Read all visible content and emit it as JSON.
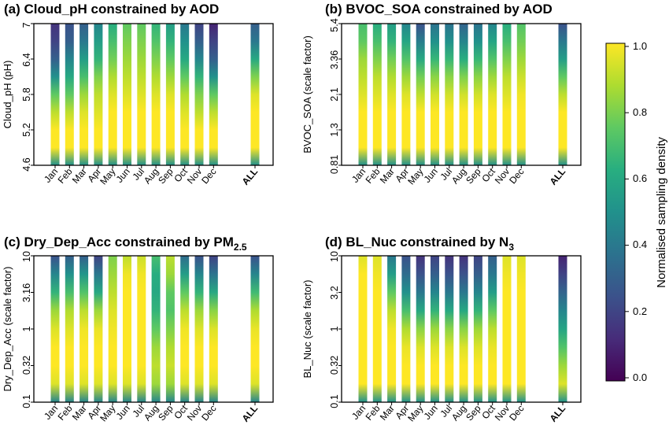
{
  "colorbar": {
    "label": "Normalised sampling density",
    "ticks": [
      "0.0",
      "0.2",
      "0.4",
      "0.6",
      "0.8",
      "1.0"
    ],
    "tick_values": [
      0,
      0.2,
      0.4,
      0.6,
      0.8,
      1.0
    ],
    "colormap": "viridis",
    "stops": [
      "#440154",
      "#472c7a",
      "#3b528b",
      "#2c728e",
      "#21918c",
      "#28ae80",
      "#5ec962",
      "#addc30",
      "#fde725"
    ]
  },
  "chart_data": [
    {
      "type": "heatmap",
      "title_text": "(a) Cloud_pH constrained by AOD",
      "ylabel": "Cloud_pH  (pH)",
      "yticks": [
        "4.6",
        "5.2",
        "5.8",
        "6.4",
        "7"
      ],
      "categories": [
        "Jan",
        "Feb",
        "Mar",
        "Apr",
        "May",
        "Jun",
        "Jul",
        "Aug",
        "Sep",
        "Oct",
        "Nov",
        "Dec",
        "ALL"
      ],
      "density_profiles": [
        [
          0.5,
          1,
          1,
          0.9,
          0.75,
          0.5,
          0.3,
          0.2,
          0.15
        ],
        [
          0.5,
          1,
          1,
          0.9,
          0.75,
          0.6,
          0.45,
          0.3,
          0.25
        ],
        [
          0.5,
          1,
          1,
          0.95,
          0.85,
          0.7,
          0.55,
          0.4,
          0.3
        ],
        [
          0.5,
          1,
          1,
          0.95,
          0.9,
          0.8,
          0.65,
          0.55,
          0.45
        ],
        [
          0.5,
          1,
          1,
          1,
          0.95,
          0.88,
          0.78,
          0.7,
          0.62
        ],
        [
          0.5,
          1,
          1,
          1,
          0.95,
          0.9,
          0.85,
          0.8,
          0.75
        ],
        [
          0.5,
          1,
          1,
          1,
          0.95,
          0.9,
          0.85,
          0.8,
          0.75
        ],
        [
          0.5,
          1,
          1,
          1,
          0.95,
          0.88,
          0.8,
          0.72,
          0.65
        ],
        [
          0.5,
          1,
          1,
          1,
          0.95,
          0.85,
          0.75,
          0.65,
          0.55
        ],
        [
          0.5,
          1,
          1,
          0.95,
          0.88,
          0.75,
          0.6,
          0.5,
          0.4
        ],
        [
          0.5,
          1,
          1,
          0.9,
          0.8,
          0.65,
          0.45,
          0.3,
          0.2
        ],
        [
          0.5,
          1,
          1,
          0.9,
          0.75,
          0.5,
          0.3,
          0.2,
          0.1
        ],
        [
          0.5,
          1,
          1,
          1,
          0.95,
          0.8,
          0.6,
          0.4,
          0.3
        ]
      ]
    },
    {
      "type": "heatmap",
      "title_text": "(b) BVOC_SOA constrained by AOD",
      "ylabel": "BVOC_SOA  (scale factor)",
      "yticks": [
        "0.81",
        "1.3",
        "2.1",
        "3.36",
        "5.4"
      ],
      "categories": [
        "Jan",
        "Feb",
        "Mar",
        "Apr",
        "May",
        "Jun",
        "Jul",
        "Aug",
        "Sep",
        "Oct",
        "Nov",
        "Dec",
        "ALL"
      ],
      "density_profiles": [
        [
          0.5,
          1,
          1,
          1,
          0.95,
          0.9,
          0.85,
          0.75,
          0.7
        ],
        [
          0.5,
          1,
          1,
          1,
          0.95,
          0.9,
          0.8,
          0.7,
          0.62
        ],
        [
          0.5,
          1,
          1,
          1,
          0.95,
          0.88,
          0.78,
          0.65,
          0.55
        ],
        [
          0.5,
          1,
          1,
          1,
          0.95,
          0.85,
          0.72,
          0.58,
          0.45
        ],
        [
          0.5,
          1,
          1,
          1,
          0.9,
          0.78,
          0.6,
          0.42,
          0.25
        ],
        [
          0.5,
          1,
          1,
          1,
          0.93,
          0.82,
          0.66,
          0.5,
          0.38
        ],
        [
          0.5,
          1,
          1,
          1,
          0.93,
          0.82,
          0.66,
          0.5,
          0.38
        ],
        [
          0.5,
          1,
          1,
          1,
          0.93,
          0.8,
          0.62,
          0.45,
          0.32
        ],
        [
          0.5,
          1,
          1,
          1,
          0.93,
          0.82,
          0.66,
          0.5,
          0.38
        ],
        [
          0.5,
          1,
          1,
          1,
          0.95,
          0.85,
          0.72,
          0.58,
          0.45
        ],
        [
          0.5,
          1,
          1,
          1,
          0.95,
          0.9,
          0.8,
          0.7,
          0.62
        ],
        [
          0.5,
          1,
          1,
          1,
          0.98,
          0.92,
          0.85,
          0.78,
          0.72
        ],
        [
          0.5,
          1,
          1,
          1,
          0.9,
          0.75,
          0.55,
          0.4,
          0.25
        ]
      ]
    },
    {
      "type": "heatmap",
      "title_text": "(c) Dry_Dep_Acc constrained by PM",
      "title_subscript": "2.5",
      "ylabel": "Dry_Dep_Acc  (scale factor)",
      "yticks": [
        "0.1",
        "0.32",
        "1",
        "3.16",
        "10"
      ],
      "categories": [
        "Jan",
        "Feb",
        "Mar",
        "Apr",
        "May",
        "Jun",
        "Jul",
        "Aug",
        "Sep",
        "Oct",
        "Nov",
        "Dec",
        "ALL"
      ],
      "density_profiles": [
        [
          0.45,
          0.95,
          1,
          1,
          0.95,
          0.85,
          0.65,
          0.45,
          0.25
        ],
        [
          0.45,
          0.95,
          1,
          1,
          0.95,
          0.88,
          0.7,
          0.5,
          0.3
        ],
        [
          0.45,
          0.95,
          1,
          1,
          0.98,
          0.9,
          0.72,
          0.52,
          0.3
        ],
        [
          0.45,
          0.95,
          1,
          1,
          0.97,
          0.85,
          0.6,
          0.4,
          0.2
        ],
        [
          0.45,
          0.95,
          1,
          1,
          0.98,
          0.95,
          0.9,
          0.85,
          0.8
        ],
        [
          0.45,
          0.95,
          1,
          1,
          1,
          1,
          1,
          0.98,
          0.9
        ],
        [
          0.45,
          0.95,
          1,
          1,
          1,
          1,
          1,
          0.98,
          0.92
        ],
        [
          0.45,
          0.85,
          0.9,
          0.85,
          0.75,
          0.65,
          0.6,
          0.62,
          0.7
        ],
        [
          0.45,
          0.85,
          0.92,
          0.88,
          0.8,
          0.72,
          0.75,
          0.85,
          0.9
        ],
        [
          0.45,
          0.95,
          1,
          1,
          0.98,
          0.9,
          0.75,
          0.55,
          0.35
        ],
        [
          0.45,
          0.95,
          1,
          1,
          0.95,
          0.85,
          0.65,
          0.45,
          0.25
        ],
        [
          0.45,
          0.95,
          1,
          1,
          0.95,
          0.82,
          0.6,
          0.38,
          0.2
        ],
        [
          0.45,
          0.95,
          1,
          1,
          0.97,
          0.88,
          0.68,
          0.45,
          0.25
        ]
      ]
    },
    {
      "type": "heatmap",
      "title_text": "(d) BL_Nuc constrained by N",
      "title_subscript": "3",
      "ylabel": "BL_Nuc  (scale factor)",
      "yticks": [
        "0.1",
        "0.32",
        "1",
        "3.2",
        "10"
      ],
      "categories": [
        "Jan",
        "Feb",
        "Mar",
        "Apr",
        "May",
        "Jun",
        "Jul",
        "Aug",
        "Sep",
        "Oct",
        "Nov",
        "Dec",
        "ALL"
      ],
      "density_profiles": [
        [
          0.5,
          1,
          1,
          1,
          1,
          1,
          1,
          1,
          0.95
        ],
        [
          0.5,
          1,
          1,
          1,
          1,
          1,
          1,
          0.98,
          0.95
        ],
        [
          0.5,
          1,
          1,
          1,
          0.98,
          0.9,
          0.75,
          0.55,
          0.4
        ],
        [
          0.5,
          1,
          1,
          0.97,
          0.88,
          0.7,
          0.5,
          0.35,
          0.25
        ],
        [
          0.5,
          1,
          1,
          0.95,
          0.82,
          0.6,
          0.4,
          0.25,
          0.15
        ],
        [
          0.5,
          1,
          1,
          0.95,
          0.85,
          0.65,
          0.45,
          0.3,
          0.2
        ],
        [
          0.5,
          1,
          1,
          0.95,
          0.82,
          0.6,
          0.4,
          0.25,
          0.15
        ],
        [
          0.5,
          1,
          1,
          0.95,
          0.82,
          0.6,
          0.4,
          0.25,
          0.15
        ],
        [
          0.5,
          1,
          1,
          0.95,
          0.85,
          0.65,
          0.45,
          0.3,
          0.2
        ],
        [
          0.5,
          1,
          1,
          0.97,
          0.9,
          0.75,
          0.55,
          0.4,
          0.3
        ],
        [
          0.5,
          1,
          1,
          1,
          1,
          1,
          1,
          0.98,
          0.95
        ],
        [
          0.5,
          1,
          1,
          1,
          1,
          1,
          1,
          0.98,
          0.95
        ],
        [
          0.5,
          0.95,
          0.85,
          0.72,
          0.58,
          0.45,
          0.32,
          0.2,
          0.1
        ]
      ]
    }
  ]
}
